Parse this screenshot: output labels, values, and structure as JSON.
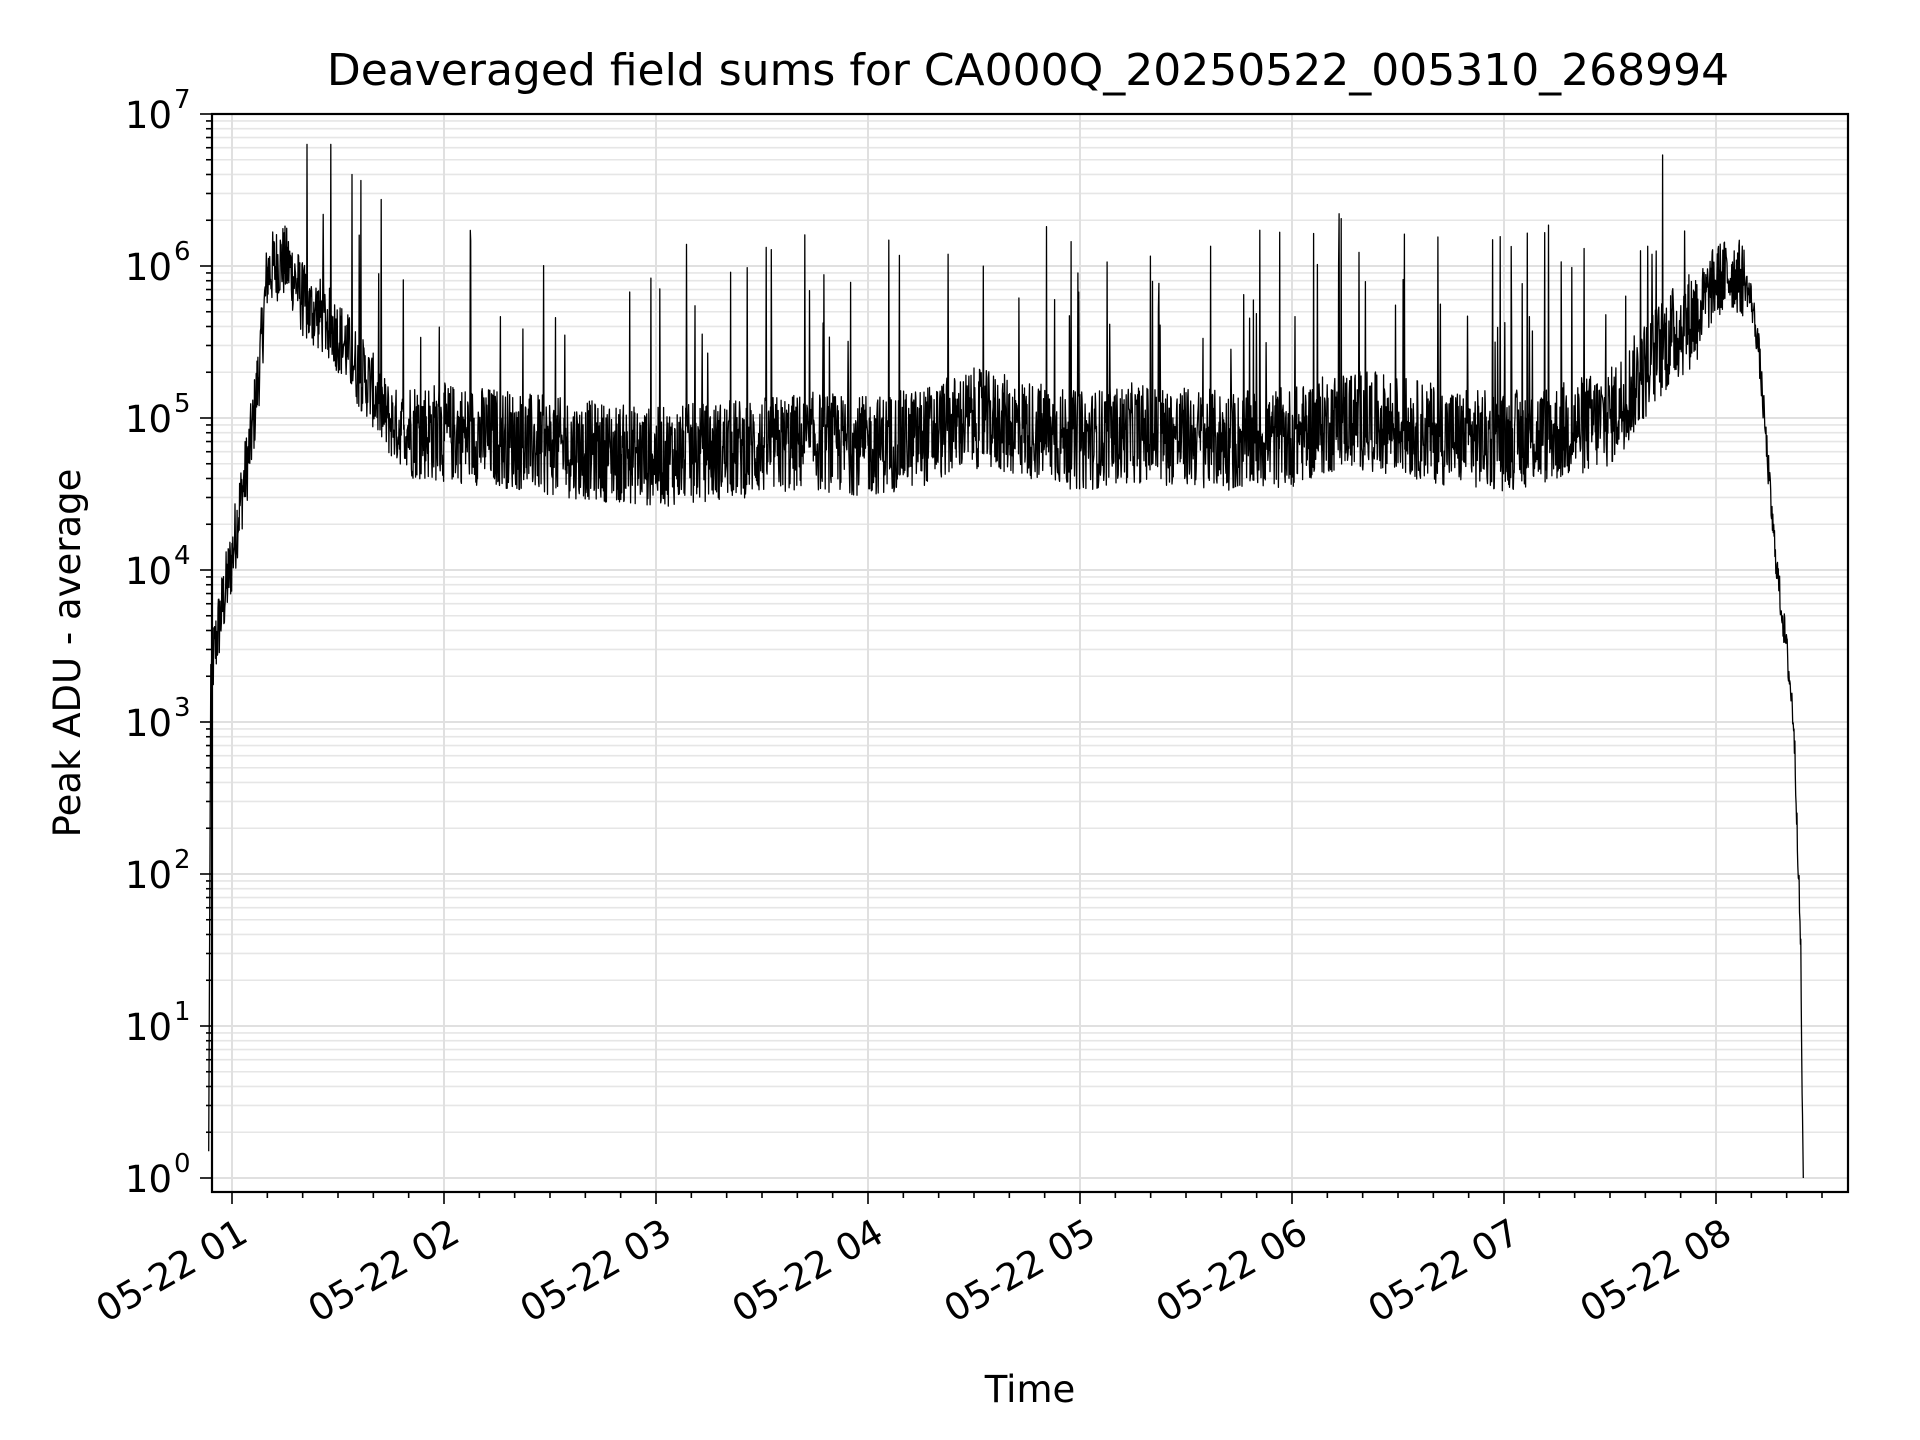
{
  "chart_data": {
    "type": "line",
    "title": "Deaveraged field sums for CA000Q_20250522_005310_268994",
    "xlabel": "Time",
    "ylabel": "Peak ADU - average",
    "yscale": "log",
    "ylim": [
      1,
      10000000
    ],
    "xlim": [
      "2025-05-22T00:53:10",
      "2025-05-22T08:25:00"
    ],
    "grid": "major and minor",
    "x_tick_labels": [
      "05-22 01",
      "05-22 02",
      "05-22 03",
      "05-22 04",
      "05-22 05",
      "05-22 06",
      "05-22 07",
      "05-22 08"
    ],
    "x_tick_times": [
      "2025-05-22T01:00",
      "2025-05-22T02:00",
      "2025-05-22T03:00",
      "2025-05-22T04:00",
      "2025-05-22T05:00",
      "2025-05-22T06:00",
      "2025-05-22T07:00",
      "2025-05-22T08:00"
    ],
    "y_ticks": [
      {
        "base": "10",
        "exp": "0"
      },
      {
        "base": "10",
        "exp": "1"
      },
      {
        "base": "10",
        "exp": "2"
      },
      {
        "base": "10",
        "exp": "3"
      },
      {
        "base": "10",
        "exp": "4"
      },
      {
        "base": "10",
        "exp": "5"
      },
      {
        "base": "10",
        "exp": "6"
      },
      {
        "base": "10",
        "exp": "7"
      }
    ],
    "series": [
      {
        "color": "#000000",
        "x": [
          "00:54:00",
          "00:56:00",
          "00:58:00",
          "01:00:00",
          "01:02:00",
          "01:04:00",
          "01:06:00",
          "01:08:00",
          "01:10:00",
          "01:12:00",
          "01:14:00",
          "01:16:00",
          "01:18:00",
          "01:20:00",
          "01:22:00",
          "01:24:00",
          "01:26:00",
          "01:28:00",
          "01:30:00",
          "01:32:00",
          "01:34:00",
          "01:36:00",
          "01:38:00",
          "01:40:00",
          "01:42:00",
          "01:44:00",
          "01:46:00",
          "01:48:00",
          "01:50:00",
          "02:00:00",
          "02:15:00",
          "02:30:00",
          "02:45:00",
          "03:00:00",
          "03:15:00",
          "03:30:00",
          "03:45:00",
          "04:00:00",
          "04:15:00",
          "04:30:00",
          "04:45:00",
          "05:00:00",
          "05:15:00",
          "05:30:00",
          "05:45:00",
          "06:00:00",
          "06:15:00",
          "06:30:00",
          "06:45:00",
          "07:00:00",
          "07:15:00",
          "07:30:00",
          "07:45:00",
          "07:55:00",
          "08:00:00",
          "08:05:00",
          "08:08:00",
          "08:10:00",
          "08:12:00",
          "08:14:00",
          "08:16:00",
          "08:18:00",
          "08:20:00",
          "08:22:00",
          "08:23:00",
          "08:24:00",
          "08:24:30"
        ],
        "y": [
          2000,
          4000,
          7000,
          12000,
          25000,
          45000,
          90000,
          250000,
          900000,
          1000000,
          1100000,
          1000000,
          800000,
          600000,
          500000,
          500000,
          450000,
          400000,
          350000,
          300000,
          250000,
          200000,
          180000,
          150000,
          120000,
          100000,
          90000,
          85000,
          85000,
          80000,
          75000,
          65000,
          60000,
          55000,
          60000,
          65000,
          70000,
          65000,
          75000,
          100000,
          85000,
          70000,
          80000,
          75000,
          70000,
          75000,
          100000,
          90000,
          75000,
          70000,
          80000,
          100000,
          300000,
          500000,
          800000,
          900000,
          800000,
          600000,
          300000,
          80000,
          20000,
          7000,
          3000,
          1000,
          200,
          30,
          2
        ]
      }
    ]
  }
}
